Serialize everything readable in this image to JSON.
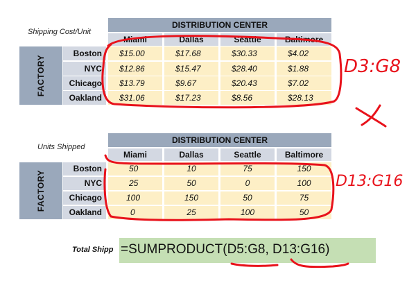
{
  "table_cost": {
    "side_label": "Shipping Cost/Unit",
    "group_header": "DISTRIBUTION CENTER",
    "factory_label": "FACTORY",
    "columns": [
      "Miami",
      "Dallas",
      "Seattle",
      "Baltimore"
    ],
    "rows": [
      {
        "label": "Boston",
        "values": [
          "$15.00",
          "$17.68",
          "$30.33",
          "$4.02"
        ]
      },
      {
        "label": "NYC",
        "values": [
          "$12.86",
          "$15.47",
          "$28.40",
          "$1.88"
        ]
      },
      {
        "label": "Chicago",
        "values": [
          "$13.79",
          "$9.67",
          "$20.43",
          "$7.02"
        ]
      },
      {
        "label": "Oakland",
        "values": [
          "$31.06",
          "$17.23",
          "$8.56",
          "$28.13"
        ]
      }
    ]
  },
  "table_units": {
    "side_label": "Units Shipped",
    "group_header": "DISTRIBUTION CENTER",
    "factory_label": "FACTORY",
    "columns": [
      "Miami",
      "Dallas",
      "Seattle",
      "Baltimore"
    ],
    "rows": [
      {
        "label": "Boston",
        "values": [
          "50",
          "10",
          "75",
          "150"
        ]
      },
      {
        "label": "NYC",
        "values": [
          "25",
          "50",
          "0",
          "100"
        ]
      },
      {
        "label": "Chicago",
        "values": [
          "100",
          "150",
          "50",
          "75"
        ]
      },
      {
        "label": "Oakland",
        "values": [
          "0",
          "25",
          "100",
          "50"
        ]
      }
    ]
  },
  "formula": {
    "label": "Total Shipp",
    "text": "=SUMPRODUCT(D5:G8, D13:G16)"
  },
  "annotations": {
    "range1": "D3:G8",
    "range2": "D13:G16",
    "multiply_mark": "×",
    "ink_color": "#e8121b"
  }
}
